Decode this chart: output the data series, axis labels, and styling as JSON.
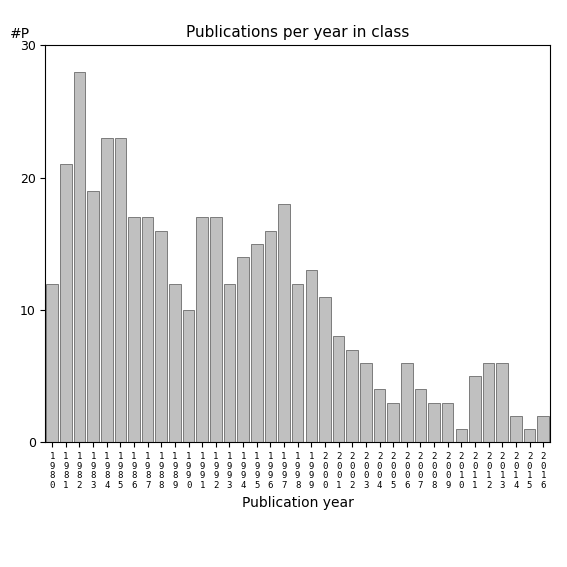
{
  "title": "Publications per year in class",
  "xlabel": "Publication year",
  "ylabel": "#P",
  "bar_color": "#c0c0c0",
  "bar_edgecolor": "#555555",
  "ylim": [
    0,
    30
  ],
  "yticks": [
    0,
    10,
    20,
    30
  ],
  "years": [
    "1980",
    "1981",
    "1982",
    "1983",
    "1984",
    "1985",
    "1986",
    "1987",
    "1988",
    "1989",
    "1990",
    "1991",
    "1992",
    "1993",
    "1994",
    "1995",
    "1996",
    "1997",
    "1998",
    "1999",
    "2000",
    "2001",
    "2002",
    "2003",
    "2004",
    "2005",
    "2006",
    "2007",
    "2008",
    "2009",
    "2010",
    "2011",
    "2012",
    "2013",
    "2014",
    "2015",
    "2016"
  ],
  "values": [
    12,
    21,
    28,
    19,
    23,
    23,
    17,
    17,
    16,
    12,
    10,
    17,
    17,
    12,
    14,
    15,
    16,
    18,
    12,
    13,
    11,
    8,
    7,
    6,
    4,
    3,
    6,
    4,
    3,
    3,
    1,
    5,
    6,
    6,
    2,
    1,
    2
  ]
}
